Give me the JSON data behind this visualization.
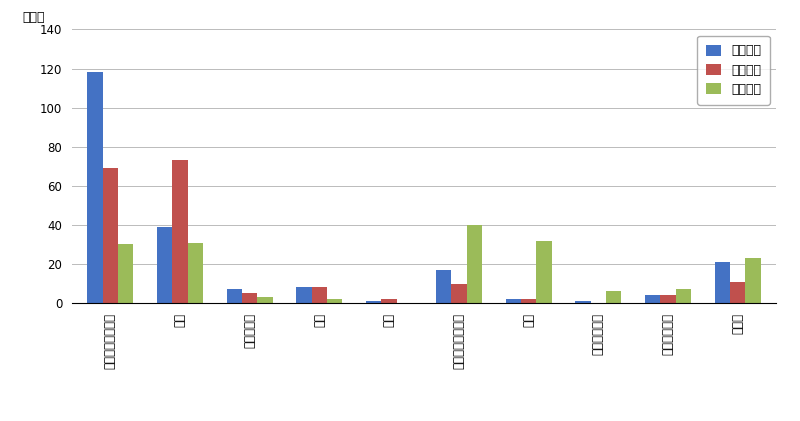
{
  "categories": [
    "就職・転職・転業",
    "転勤",
    "退職・廃業",
    "就学",
    "卒業",
    "結婚・離婚・縁組",
    "住宅",
    "交通の利便性",
    "生活の利便性",
    "その他"
  ],
  "series": {
    "県外転入": [
      118,
      39,
      7,
      8,
      1,
      17,
      2,
      1,
      4,
      21
    ],
    "県外転出": [
      69,
      73,
      5,
      8,
      2,
      10,
      2,
      0,
      4,
      11
    ],
    "県内移動": [
      30,
      31,
      3,
      2,
      0,
      40,
      32,
      6,
      7,
      23
    ]
  },
  "colors": {
    "県外転入": "#4472C4",
    "県外転出": "#C0504D",
    "県内移動": "#9BBB59"
  },
  "ylabel": "（人）",
  "ylim": [
    0,
    140
  ],
  "yticks": [
    0,
    20,
    40,
    60,
    80,
    100,
    120,
    140
  ],
  "background_color": "#FFFFFF",
  "grid_color": "#BBBBBB",
  "bar_width": 0.22,
  "legend_fontsize": 9,
  "tick_fontsize": 8.5,
  "ylabel_fontsize": 9
}
